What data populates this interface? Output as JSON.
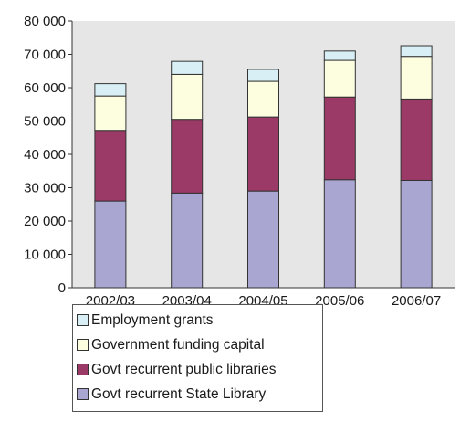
{
  "chart_data": {
    "type": "bar",
    "stacked": true,
    "categories": [
      "2002/03",
      "2003/04",
      "2004/05",
      "2005/06",
      "2006/07"
    ],
    "series": [
      {
        "name": "Govt recurrent State Library",
        "color": "#a9a7d1",
        "values": [
          26000,
          28400,
          29000,
          32400,
          32200
        ]
      },
      {
        "name": "Govt recurrent public libraries",
        "color": "#9c3a67",
        "values": [
          21200,
          22100,
          22200,
          24800,
          24400
        ]
      },
      {
        "name": "Government funding capital",
        "color": "#fdfde0",
        "values": [
          10300,
          13500,
          10700,
          11000,
          12800
        ]
      },
      {
        "name": "Employment grants",
        "color": "#d8f0f5",
        "values": [
          3700,
          3900,
          3600,
          2800,
          3200
        ]
      }
    ],
    "legend_order": [
      "Employment grants",
      "Government funding capital",
      "Govt recurrent public libraries",
      "Govt recurrent State Library"
    ],
    "y_ticks": [
      "0",
      "10 000",
      "20 000",
      "30 000",
      "40 000",
      "50 000",
      "60 000",
      "70 000",
      "80 000"
    ],
    "ylim": [
      0,
      80000
    ],
    "title": "",
    "xlabel": "",
    "ylabel": "",
    "grid": false,
    "plot_background": "#e6e6e6",
    "legend_position": "bottom-left"
  }
}
